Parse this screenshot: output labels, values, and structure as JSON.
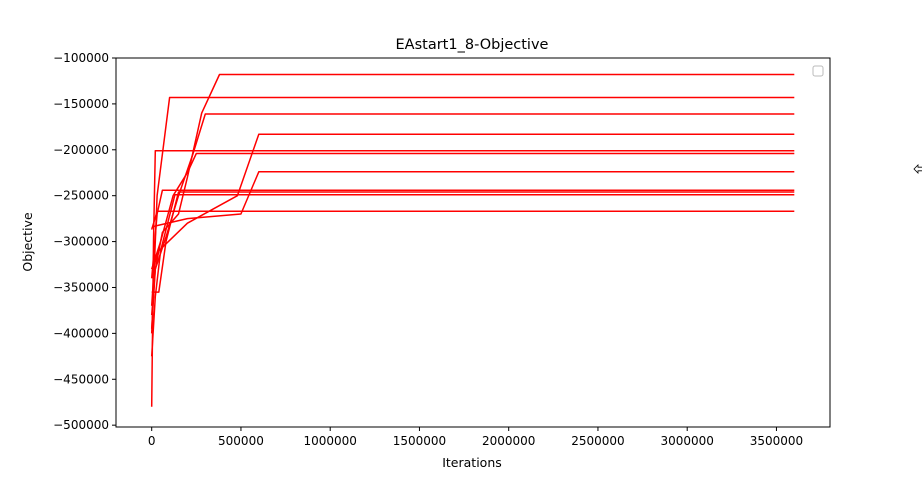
{
  "chart_data": {
    "type": "line",
    "title": "EAstart1_8-Objective",
    "xlabel": "Iterations",
    "ylabel": "Objective",
    "xlim": [
      -200000,
      3800000
    ],
    "ylim": [
      -502000,
      -100000
    ],
    "x_ticks": [
      0,
      500000,
      1000000,
      1500000,
      2000000,
      2500000,
      3000000,
      3500000
    ],
    "x_tick_labels": [
      "0",
      "500000",
      "1000000",
      "1500000",
      "2000000",
      "2500000",
      "3000000",
      "3500000"
    ],
    "y_ticks": [
      -100000,
      -150000,
      -200000,
      -250000,
      -300000,
      -350000,
      -400000,
      -450000,
      -500000
    ],
    "y_tick_labels": [
      "−100000",
      "−150000",
      "−200000",
      "−250000",
      "−300000",
      "−350000",
      "−400000",
      "−450000",
      "−500000"
    ],
    "grid": false,
    "legend": {
      "placement": "top-right",
      "entries": []
    },
    "line_color": "#ff0000",
    "series": [
      {
        "x": [
          0,
          20000,
          60000,
          150000,
          200000,
          280000,
          380000,
          3600000
        ],
        "y": [
          -395000,
          -330000,
          -290000,
          -270000,
          -230000,
          -160000,
          -118000,
          -118000
        ]
      },
      {
        "x": [
          0,
          30000,
          100000,
          3600000
        ],
        "y": [
          -400000,
          -250000,
          -143000,
          -143000
        ]
      },
      {
        "x": [
          0,
          20000,
          80000,
          150000,
          230000,
          300000,
          3600000
        ],
        "y": [
          -380000,
          -330000,
          -295000,
          -250000,
          -205000,
          -161000,
          -161000
        ]
      },
      {
        "x": [
          0,
          15000,
          40000,
          200000,
          480000,
          600000,
          3600000
        ],
        "y": [
          -370000,
          -325000,
          -310000,
          -280000,
          -250000,
          -183000,
          -183000
        ]
      },
      {
        "x": [
          0,
          10000,
          20000,
          3600000
        ],
        "y": [
          -480000,
          -300000,
          -201000,
          -201000
        ]
      },
      {
        "x": [
          0,
          50000,
          120000,
          200000,
          250000,
          3600000
        ],
        "y": [
          -330000,
          -300000,
          -250000,
          -225000,
          -204000,
          -204000
        ]
      },
      {
        "x": [
          0,
          20000,
          200000,
          500000,
          600000,
          3600000
        ],
        "y": [
          -285000,
          -283000,
          -275000,
          -270000,
          -224000,
          -224000
        ]
      },
      {
        "x": [
          0,
          30000,
          60000,
          3600000
        ],
        "y": [
          -340000,
          -270000,
          -244000,
          -244000
        ]
      },
      {
        "x": [
          0,
          40000,
          80000,
          150000,
          3600000
        ],
        "y": [
          -355000,
          -355000,
          -300000,
          -246000,
          -246000
        ]
      },
      {
        "x": [
          0,
          20000,
          50000,
          130000,
          3600000
        ],
        "y": [
          -425000,
          -360000,
          -310000,
          -249000,
          -249000
        ]
      },
      {
        "x": [
          0,
          30000,
          100000,
          300000,
          3600000
        ],
        "y": [
          -287000,
          -267000,
          -267000,
          -267000,
          -267000
        ]
      }
    ]
  }
}
